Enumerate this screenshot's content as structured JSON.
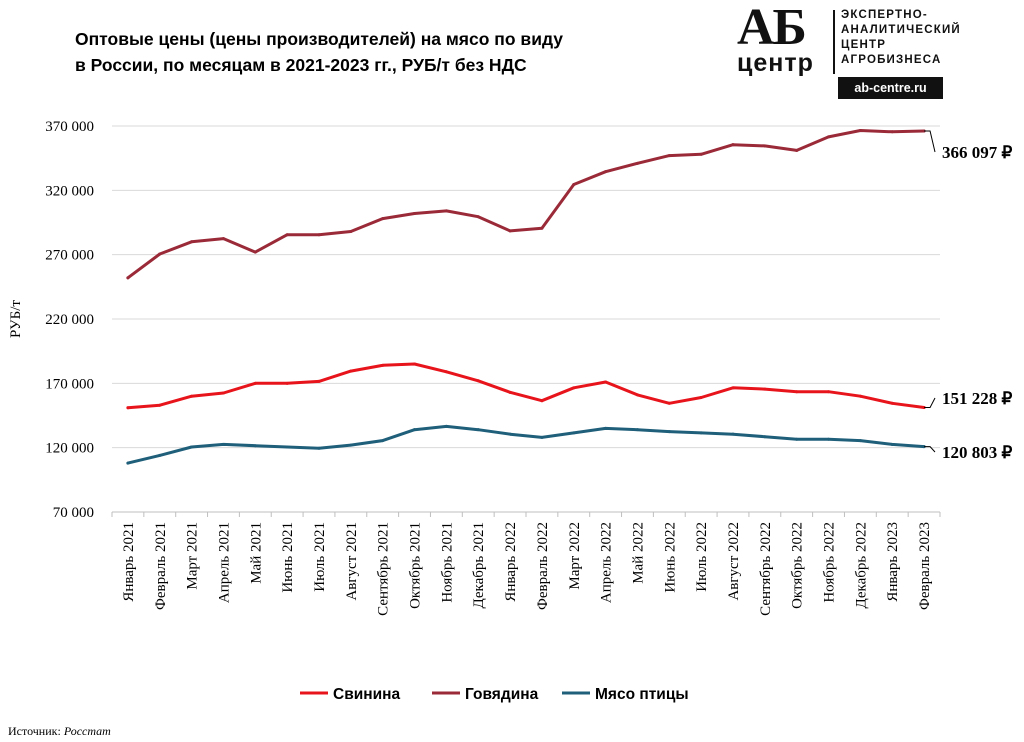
{
  "title_line1": "Оптовые цены (цены производителей) на мясо по виду",
  "title_line2": "в России, по месяцам в 2021-2023 гг., РУБ/т без НДС",
  "logo": {
    "mark_top": "АБ",
    "mark_bottom": "центр",
    "line1": "ЭКСПЕРТНО-",
    "line2": "АНАЛИТИЧЕСКИЙ",
    "line3": "ЦЕНТР",
    "line4": "АГРОБИЗНЕСА",
    "url": "ab-centre.ru"
  },
  "source_label": "Источник:",
  "source_value": "Росстат",
  "chart_data": {
    "type": "line",
    "ylabel": "РУБ/т",
    "ylim": [
      70000,
      370000
    ],
    "yticks": [
      70000,
      120000,
      170000,
      220000,
      270000,
      320000,
      370000
    ],
    "ytick_labels": [
      "70 000",
      "120 000",
      "170 000",
      "220 000",
      "270 000",
      "320 000",
      "370 000"
    ],
    "grid": true,
    "legend_position": "bottom",
    "categories": [
      "Январь 2021",
      "Февраль 2021",
      "Март 2021",
      "Апрель 2021",
      "Май 2021",
      "Июнь 2021",
      "Июль 2021",
      "Август 2021",
      "Сентябрь 2021",
      "Октябрь 2021",
      "Ноябрь 2021",
      "Декабрь 2021",
      "Январь 2022",
      "Февраль 2022",
      "Март 2022",
      "Апрель 2022",
      "Май 2022",
      "Июнь 2022",
      "Июль 2022",
      "Август 2022",
      "Сентябрь 2022",
      "Октябрь 2022",
      "Ноябрь 2022",
      "Декабрь 2022",
      "Январь 2023",
      "Февраль 2023"
    ],
    "series": [
      {
        "name": "Свинина",
        "color": "#e8141c",
        "end_label": "151 228 ₽",
        "values": [
          151000,
          153000,
          160000,
          162500,
          170000,
          170000,
          171500,
          179500,
          184000,
          185000,
          179000,
          172000,
          163000,
          156500,
          166500,
          171000,
          161000,
          154500,
          159000,
          166500,
          165500,
          163500,
          163500,
          160000,
          154500,
          151228
        ]
      },
      {
        "name": "Говядина",
        "color": "#9b2a38",
        "end_label": "366 097 ₽",
        "values": [
          252000,
          270500,
          280000,
          282500,
          272000,
          285500,
          285500,
          288000,
          298000,
          302000,
          304000,
          299500,
          288500,
          290500,
          324500,
          334500,
          341000,
          347000,
          348000,
          355500,
          354500,
          351000,
          361500,
          366500,
          365500,
          366097
        ]
      },
      {
        "name": "Мясо птицы",
        "color": "#1f5f7a",
        "end_label": "120 803 ₽",
        "values": [
          108000,
          114000,
          120500,
          122500,
          121500,
          120500,
          119500,
          122000,
          125500,
          134000,
          136500,
          134000,
          130500,
          128000,
          131500,
          135000,
          134000,
          132500,
          131500,
          130500,
          128500,
          126500,
          126500,
          125500,
          122500,
          120803
        ]
      }
    ]
  }
}
